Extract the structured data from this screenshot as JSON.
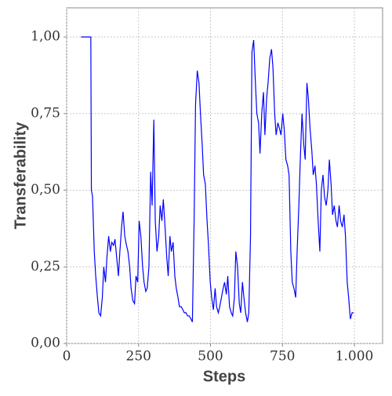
{
  "chart_data": {
    "type": "line",
    "x_label": "Steps",
    "y_label": "Transferability",
    "x": [
      50,
      84,
      86,
      90,
      96,
      101,
      107,
      112,
      118,
      124,
      129,
      135,
      140,
      146,
      152,
      157,
      163,
      168,
      174,
      180,
      185,
      191,
      196,
      202,
      208,
      213,
      219,
      224,
      230,
      236,
      241,
      247,
      252,
      258,
      264,
      269,
      275,
      280,
      286,
      292,
      297,
      303,
      308,
      314,
      320,
      325,
      331,
      336,
      342,
      348,
      353,
      359,
      364,
      370,
      376,
      381,
      387,
      392,
      398,
      404,
      409,
      415,
      420,
      426,
      432,
      437,
      443,
      448,
      454,
      460,
      465,
      471,
      476,
      482,
      488,
      493,
      499,
      504,
      510,
      516,
      521,
      527,
      532,
      538,
      544,
      549,
      555,
      560,
      566,
      572,
      577,
      583,
      588,
      594,
      600,
      605,
      611,
      616,
      622,
      628,
      633,
      639,
      644,
      650,
      656,
      661,
      667,
      672,
      678,
      684,
      689,
      695,
      700,
      706,
      712,
      717,
      723,
      728,
      734,
      740,
      745,
      751,
      756,
      762,
      768,
      773,
      779,
      784,
      790,
      796,
      801,
      807,
      812,
      818,
      824,
      829,
      835,
      840,
      846,
      852,
      857,
      863,
      868,
      874,
      880,
      885,
      891,
      896,
      902,
      908,
      913,
      919,
      924,
      930,
      936,
      941,
      947,
      952,
      958,
      964,
      969,
      975,
      980,
      986,
      992,
      997
    ],
    "series": [
      {
        "color": "#0000ff",
        "values": [
          1.0,
          1.0,
          0.5,
          0.48,
          0.3,
          0.22,
          0.15,
          0.1,
          0.09,
          0.15,
          0.25,
          0.2,
          0.28,
          0.35,
          0.3,
          0.33,
          0.32,
          0.34,
          0.28,
          0.22,
          0.3,
          0.38,
          0.43,
          0.35,
          0.32,
          0.3,
          0.25,
          0.18,
          0.14,
          0.13,
          0.22,
          0.2,
          0.4,
          0.35,
          0.25,
          0.2,
          0.17,
          0.18,
          0.25,
          0.56,
          0.45,
          0.73,
          0.4,
          0.3,
          0.35,
          0.45,
          0.4,
          0.47,
          0.38,
          0.28,
          0.22,
          0.35,
          0.3,
          0.33,
          0.22,
          0.18,
          0.15,
          0.12,
          0.12,
          0.11,
          0.1,
          0.1,
          0.09,
          0.09,
          0.08,
          0.07,
          0.4,
          0.78,
          0.89,
          0.85,
          0.75,
          0.65,
          0.55,
          0.52,
          0.4,
          0.32,
          0.2,
          0.15,
          0.11,
          0.18,
          0.12,
          0.1,
          0.12,
          0.15,
          0.18,
          0.2,
          0.16,
          0.22,
          0.12,
          0.1,
          0.09,
          0.15,
          0.3,
          0.25,
          0.13,
          0.1,
          0.2,
          0.15,
          0.1,
          0.07,
          0.1,
          0.35,
          0.95,
          0.99,
          0.85,
          0.75,
          0.72,
          0.62,
          0.75,
          0.82,
          0.68,
          0.8,
          0.85,
          0.93,
          0.96,
          0.9,
          0.75,
          0.68,
          0.72,
          0.7,
          0.68,
          0.75,
          0.7,
          0.6,
          0.58,
          0.55,
          0.3,
          0.2,
          0.18,
          0.15,
          0.3,
          0.45,
          0.6,
          0.75,
          0.65,
          0.6,
          0.85,
          0.8,
          0.7,
          0.63,
          0.55,
          0.58,
          0.52,
          0.4,
          0.3,
          0.5,
          0.55,
          0.48,
          0.45,
          0.5,
          0.6,
          0.52,
          0.42,
          0.45,
          0.4,
          0.38,
          0.45,
          0.4,
          0.38,
          0.42,
          0.35,
          0.2,
          0.15,
          0.08,
          0.1,
          0.1
        ]
      }
    ],
    "xlim": [
      0,
      1098
    ],
    "ylim": [
      0,
      1.095
    ],
    "xticks": [
      0,
      250,
      500,
      750,
      {
        "value": 1000,
        "label": "1.000"
      }
    ],
    "yticks": [
      {
        "value": 0,
        "label": "0,00"
      },
      {
        "value": 0.25,
        "label": "0,25"
      },
      {
        "value": 0.5,
        "label": "0,50"
      },
      {
        "value": 0.75,
        "label": "0,75"
      },
      {
        "value": 1,
        "label": "1,00"
      }
    ],
    "grid": true
  }
}
